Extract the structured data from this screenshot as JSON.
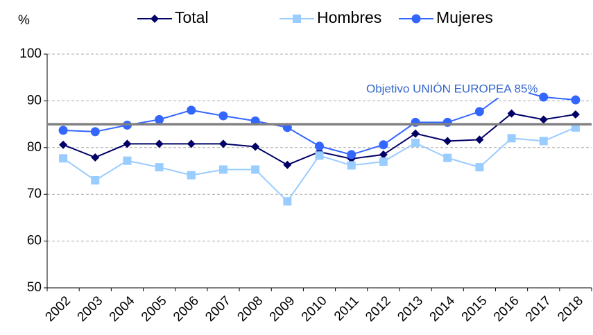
{
  "chart_data": {
    "type": "line",
    "y_axis_label": "%",
    "categories": [
      "2002",
      "2003",
      "2004",
      "2005",
      "2006",
      "2007",
      "2008",
      "2009",
      "2010",
      "2011",
      "2012",
      "2013",
      "2014",
      "2015",
      "2016",
      "2017",
      "2018"
    ],
    "series": [
      {
        "name": "Total",
        "color": "#000066",
        "marker": "diamond",
        "values": [
          80.6,
          77.9,
          80.8,
          80.8,
          80.8,
          80.8,
          80.2,
          76.3,
          79.1,
          77.6,
          78.5,
          83.0,
          81.4,
          81.7,
          87.3,
          86.0,
          87.1
        ]
      },
      {
        "name": "Hombres",
        "color": "#99ccff",
        "marker": "square",
        "values": [
          77.7,
          73.0,
          77.2,
          75.8,
          74.1,
          75.3,
          75.3,
          68.5,
          78.3,
          76.2,
          77.0,
          81.0,
          77.8,
          75.8,
          82.0,
          81.4,
          84.3
        ]
      },
      {
        "name": "Mujeres",
        "color": "#3366ff",
        "marker": "circle",
        "values": [
          83.7,
          83.4,
          84.8,
          86.0,
          88.0,
          86.8,
          85.7,
          84.3,
          80.3,
          78.5,
          80.6,
          85.4,
          85.4,
          87.7,
          92.7,
          90.8,
          90.2
        ]
      }
    ],
    "reference_line": {
      "value": 85,
      "color": "#808080",
      "label": "Objetivo UNIÓN  EUROPEA  85%",
      "label_color": "#3366cc"
    },
    "ylim": [
      50,
      100
    ],
    "yticks": [
      50,
      60,
      70,
      80,
      90,
      100
    ],
    "grid": true
  }
}
